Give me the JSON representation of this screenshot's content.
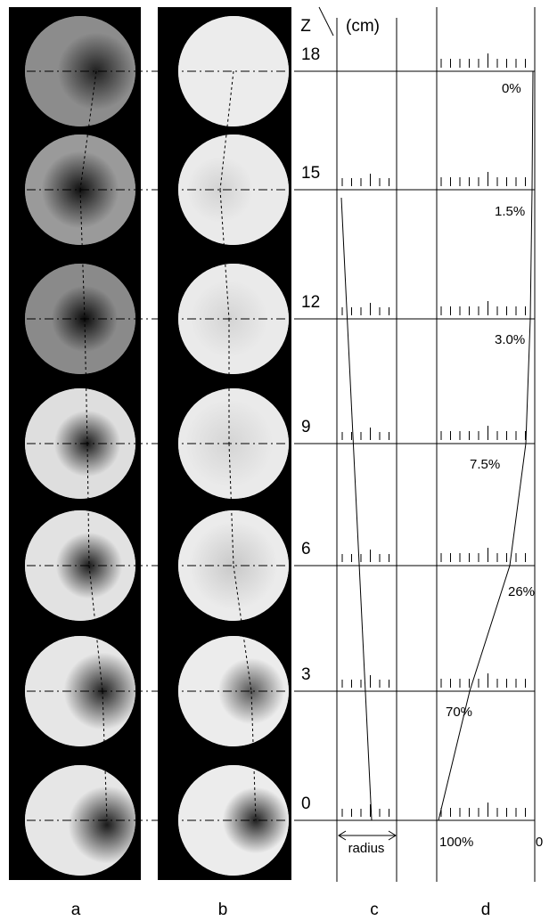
{
  "header": {
    "z_label": "Z",
    "unit": "(cm)"
  },
  "levels": [
    {
      "z": "18",
      "fraction": "0%"
    },
    {
      "z": "15",
      "fraction": "1.5%"
    },
    {
      "z": "12",
      "fraction": "3.0%"
    },
    {
      "z": "9",
      "fraction": "7.5%"
    },
    {
      "z": "6",
      "fraction": "26%"
    },
    {
      "z": "3",
      "fraction": "70%"
    },
    {
      "z": "0",
      "fraction": null
    }
  ],
  "axis_c": {
    "label": "radius"
  },
  "axis_d": {
    "left": "100%",
    "right": "0"
  },
  "panels": [
    "a",
    "b",
    "c",
    "d"
  ]
}
